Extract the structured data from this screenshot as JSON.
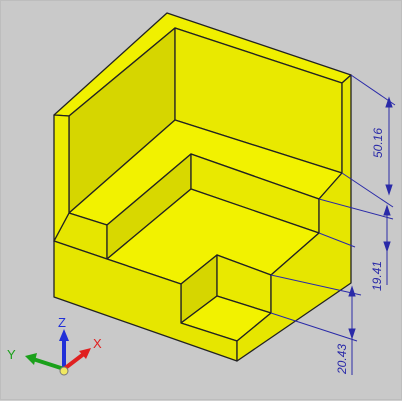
{
  "dimensions": {
    "top_height": "50.16",
    "mid_height": "19.41",
    "bottom_height": "20.43"
  },
  "triad": {
    "x_label": "X",
    "y_label": "Y",
    "z_label": "Z",
    "x_color": "#e02020",
    "y_color": "#1aa01a",
    "z_color": "#2030d8"
  },
  "colors": {
    "background": "#c9c9c9",
    "part_light": "#f2f200",
    "part_mid": "#e3e300",
    "part_dark": "#caca00",
    "edge": "#222222",
    "dimension": "#2a2aa8"
  }
}
